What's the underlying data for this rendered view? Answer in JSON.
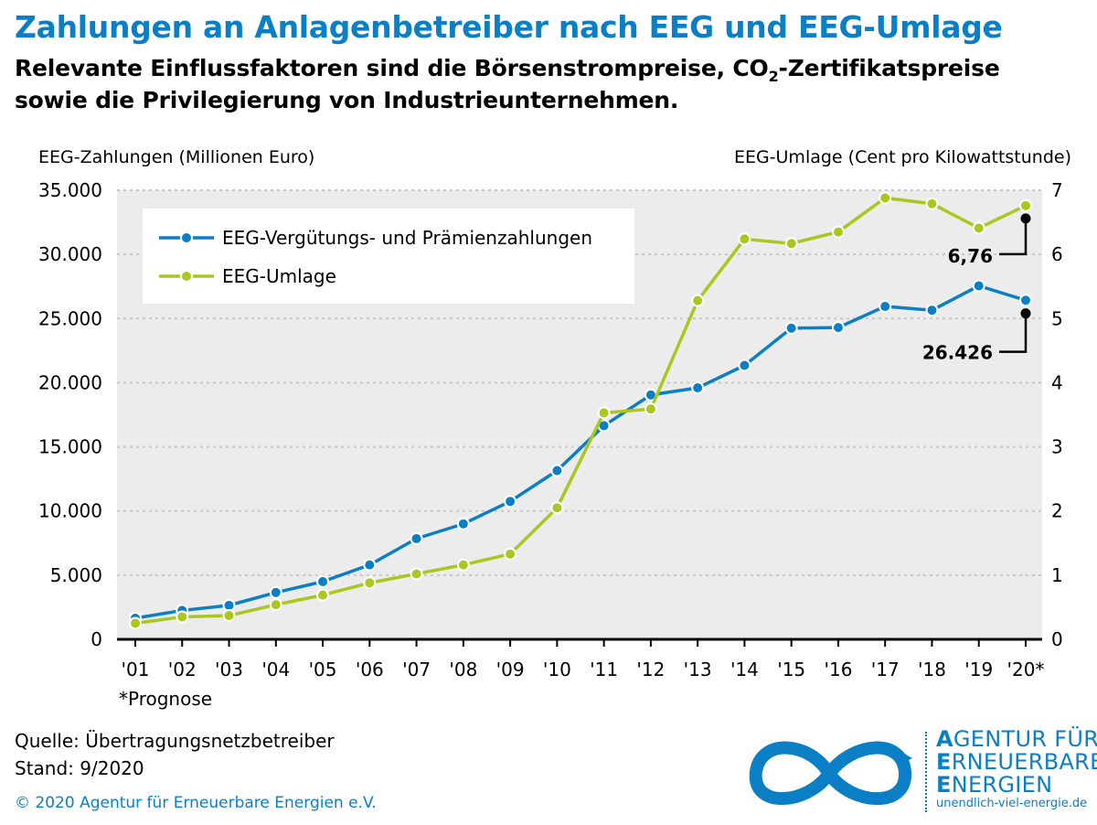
{
  "header": {
    "title": "Zahlungen an Anlagenbetreiber nach EEG und EEG-Umlage",
    "subtitle_line1_a": "Relevante Einflussfaktoren sind die Börsenstrompreise, CO",
    "subtitle_line1_sub": "2",
    "subtitle_line1_b": "-Zertifikatspreise",
    "subtitle_line2": "sowie die Privilegierung von Industrieunternehmen."
  },
  "chart_data": {
    "type": "line",
    "categories": [
      "'01",
      "'02",
      "'03",
      "'04",
      "'05",
      "'06",
      "'07",
      "'08",
      "'09",
      "'10",
      "'11",
      "'12",
      "'13",
      "'14",
      "'15",
      "'16",
      "'17",
      "'18",
      "'19",
      "'20*"
    ],
    "ylabel_left": "EEG-Zahlungen (Millionen Euro)",
    "ylabel_right": "EEG-Umlage (Cent pro Kilowattstunde)",
    "ylim_left": [
      0,
      35000
    ],
    "ylim_right": [
      0,
      7
    ],
    "yticks_left": [
      "0",
      "5.000",
      "10.000",
      "15.000",
      "20.000",
      "25.000",
      "30.000",
      "35.000"
    ],
    "yticks_right": [
      "0",
      "1",
      "2",
      "3",
      "4",
      "5",
      "6",
      "7"
    ],
    "grid": true,
    "legend_position": "top-left",
    "series": [
      {
        "name": "EEG-Vergütungs- und Prämienzahlungen",
        "axis": "left",
        "color": "#0a7fc6",
        "values": [
          1650,
          2250,
          2650,
          3650,
          4500,
          5800,
          7850,
          9000,
          10750,
          13150,
          16650,
          19050,
          19600,
          21350,
          24250,
          24300,
          25950,
          25650,
          27550,
          26426
        ]
      },
      {
        "name": "EEG-Umlage",
        "axis": "right",
        "color": "#a9c71c",
        "values": [
          0.25,
          0.35,
          0.37,
          0.54,
          0.69,
          0.88,
          1.02,
          1.16,
          1.33,
          2.05,
          3.53,
          3.59,
          5.28,
          6.24,
          6.17,
          6.35,
          6.88,
          6.79,
          6.41,
          6.76
        ]
      }
    ],
    "annotations": [
      {
        "label": "6,76",
        "series": "EEG-Umlage",
        "category": "'20*",
        "marker_value": 6.56
      },
      {
        "label": "26.426",
        "series": "EEG-Vergütungs- und Prämienzahlungen",
        "category": "'20*",
        "marker_value": 25400
      }
    ],
    "note": "*Prognose"
  },
  "footer": {
    "source": "Quelle: Übertragungsnetzbetreiber",
    "date": "Stand: 9/2020",
    "copyright": "© 2020 Agentur für Erneuerbare Energien e.V."
  },
  "logo": {
    "line1_initial": "A",
    "line1_rest": "GENTUR FÜR",
    "line2_initial": "E",
    "line2_rest": "RNEUERBARE",
    "line3_initial": "E",
    "line3_rest": "NERGIEN",
    "url": "unendlich-viel-energie.de"
  },
  "colors": {
    "brand_blue": "#0a7fc6",
    "green": "#a9c71c",
    "plot_background": "#ececec",
    "grid": "#c8c8c8"
  }
}
